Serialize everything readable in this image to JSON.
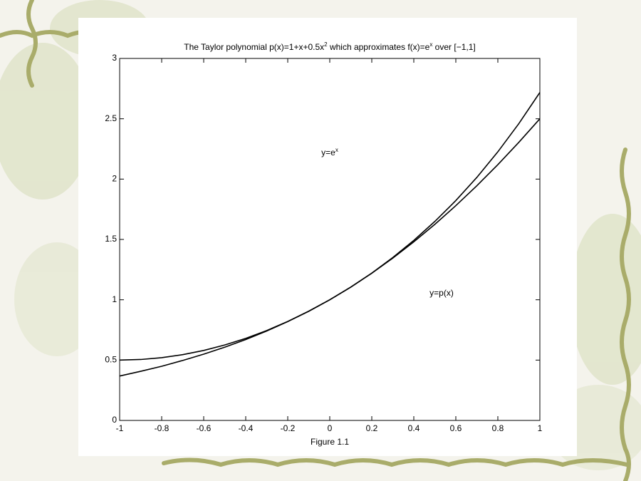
{
  "chart_data": {
    "type": "line",
    "title": [
      "The Taylor polynomial p(x)=1+x+0.5x",
      "2",
      " which approximates f(x)=e",
      "x",
      " over [−1,1]"
    ],
    "xlabel": "Figure 1.1",
    "annotations": [
      [
        "y=e",
        "x"
      ],
      [
        "y=p(x)"
      ]
    ],
    "x": [
      -1,
      -0.9,
      -0.8,
      -0.7,
      -0.6,
      -0.5,
      -0.4,
      -0.3,
      -0.2,
      -0.1,
      0,
      0.1,
      0.2,
      0.3,
      0.4,
      0.5,
      0.6,
      0.7,
      0.8,
      0.9,
      1
    ],
    "series": [
      {
        "color": "#000000",
        "values": [
          0.368,
          0.407,
          0.449,
          0.497,
          0.549,
          0.607,
          0.67,
          0.741,
          0.819,
          0.905,
          1,
          1.105,
          1.221,
          1.35,
          1.492,
          1.649,
          1.822,
          2.014,
          2.226,
          2.46,
          2.718
        ]
      },
      {
        "color": "#000000",
        "values": [
          0.5,
          0.505,
          0.52,
          0.545,
          0.58,
          0.625,
          0.68,
          0.745,
          0.82,
          0.905,
          1,
          1.105,
          1.22,
          1.345,
          1.48,
          1.625,
          1.78,
          1.945,
          2.12,
          2.305,
          2.5
        ]
      }
    ],
    "xlim": [
      -1,
      1
    ],
    "xticks": [
      -1,
      -0.8,
      -0.6,
      -0.4,
      -0.2,
      0,
      0.2,
      0.4,
      0.6,
      0.8,
      1
    ],
    "ylim": [
      0,
      3
    ],
    "yticks": [
      0,
      0.5,
      1,
      1.5,
      2,
      2.5,
      3
    ],
    "grid": false
  }
}
